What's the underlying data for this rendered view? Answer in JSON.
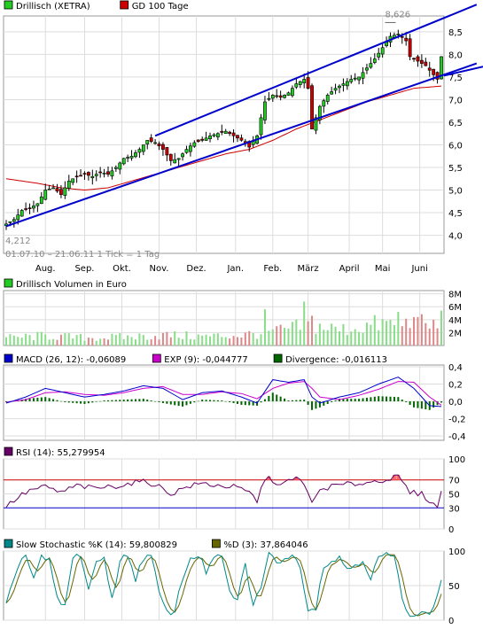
{
  "chart_data": [
    {
      "type": "candlestick",
      "panel": "price",
      "legend": [
        {
          "label": "Drillisch (XETRA)",
          "color": "#22cc22"
        },
        {
          "label": "GD 100 Tage",
          "color": "#cc0000"
        }
      ],
      "date_range_text": "01.07.10 – 21.06.11   1 Tick = 1 Tag",
      "max_label": "8,626",
      "min_label": "4,212",
      "y_ticks": [
        {
          "v": 4.0,
          "t": "4,0"
        },
        {
          "v": 4.5,
          "t": "4,5"
        },
        {
          "v": 5.0,
          "t": "5,0"
        },
        {
          "v": 5.5,
          "t": "5,5"
        },
        {
          "v": 6.0,
          "t": "6,0"
        },
        {
          "v": 6.5,
          "t": "6,5"
        },
        {
          "v": 7.0,
          "t": "7,0"
        },
        {
          "v": 7.5,
          "t": "7,5"
        },
        {
          "v": 8.0,
          "t": "8,0"
        },
        {
          "v": 8.5,
          "t": "8,5"
        }
      ],
      "ylim": [
        3.6,
        8.85
      ],
      "price_points": [
        [
          0,
          4.25
        ],
        [
          2,
          4.35
        ],
        [
          4,
          4.55
        ],
        [
          6,
          4.6
        ],
        [
          8,
          4.7
        ],
        [
          10,
          5.0
        ],
        [
          12,
          5.05
        ],
        [
          14,
          4.9
        ],
        [
          16,
          5.2
        ],
        [
          18,
          5.3
        ],
        [
          20,
          5.35
        ],
        [
          22,
          5.3
        ],
        [
          24,
          5.4
        ],
        [
          26,
          5.35
        ],
        [
          28,
          5.5
        ],
        [
          30,
          5.7
        ],
        [
          32,
          5.75
        ],
        [
          34,
          5.9
        ],
        [
          36,
          6.1
        ],
        [
          38,
          6.05
        ],
        [
          40,
          5.9
        ],
        [
          42,
          5.65
        ],
        [
          44,
          5.7
        ],
        [
          46,
          5.9
        ],
        [
          48,
          6.05
        ],
        [
          50,
          6.1
        ],
        [
          52,
          6.2
        ],
        [
          54,
          6.25
        ],
        [
          56,
          6.3
        ],
        [
          58,
          6.2
        ],
        [
          60,
          6.1
        ],
        [
          62,
          5.95
        ],
        [
          64,
          6.2
        ],
        [
          65,
          6.6
        ],
        [
          66,
          6.95
        ],
        [
          68,
          7.1
        ],
        [
          70,
          7.05
        ],
        [
          72,
          7.15
        ],
        [
          74,
          7.35
        ],
        [
          76,
          7.45
        ],
        [
          77,
          7.25
        ],
        [
          78,
          6.35
        ],
        [
          80,
          6.85
        ],
        [
          82,
          7.1
        ],
        [
          84,
          7.25
        ],
        [
          86,
          7.35
        ],
        [
          88,
          7.45
        ],
        [
          90,
          7.5
        ],
        [
          92,
          7.7
        ],
        [
          94,
          7.9
        ],
        [
          96,
          8.15
        ],
        [
          98,
          8.4
        ],
        [
          100,
          8.45
        ],
        [
          102,
          8.3
        ],
        [
          103,
          7.95
        ],
        [
          105,
          7.85
        ],
        [
          107,
          7.75
        ],
        [
          109,
          7.55
        ],
        [
          110,
          7.45
        ],
        [
          111,
          7.95
        ]
      ],
      "gd100_points": [
        [
          0,
          5.25
        ],
        [
          8,
          5.15
        ],
        [
          14,
          5.05
        ],
        [
          20,
          5.0
        ],
        [
          26,
          5.05
        ],
        [
          32,
          5.2
        ],
        [
          38,
          5.35
        ],
        [
          44,
          5.5
        ],
        [
          50,
          5.65
        ],
        [
          56,
          5.8
        ],
        [
          62,
          5.9
        ],
        [
          68,
          6.1
        ],
        [
          74,
          6.35
        ],
        [
          80,
          6.55
        ],
        [
          86,
          6.75
        ],
        [
          92,
          6.95
        ],
        [
          98,
          7.1
        ],
        [
          104,
          7.25
        ],
        [
          111,
          7.3
        ]
      ],
      "trendlines": [
        {
          "points": [
            [
              0,
              4.2
            ],
            [
              120,
              7.8
            ]
          ]
        },
        {
          "points": [
            [
              38,
              6.2
            ],
            [
              120,
              9.1
            ]
          ]
        }
      ],
      "x_labels": [
        {
          "i": 10,
          "t": "Aug."
        },
        {
          "i": 20,
          "t": "Sep."
        },
        {
          "i": 29.5,
          "t": "Okt."
        },
        {
          "i": 39,
          "t": "Nov."
        },
        {
          "i": 48.5,
          "t": "Dez."
        },
        {
          "i": 58.5,
          "t": "Jan."
        },
        {
          "i": 68,
          "t": "Feb."
        },
        {
          "i": 77,
          "t": "März"
        },
        {
          "i": 87.5,
          "t": "April"
        },
        {
          "i": 96,
          "t": "Mai"
        },
        {
          "i": 105.5,
          "t": "Juni"
        }
      ],
      "n_points": 112
    },
    {
      "type": "bar",
      "panel": "volume",
      "legend": [
        {
          "label": "Drillisch Volumen in Euro",
          "color": "#22cc22"
        }
      ],
      "y_ticks": [
        {
          "v": 2,
          "t": "2M"
        },
        {
          "v": 4,
          "t": "4M"
        },
        {
          "v": 6,
          "t": "6M"
        },
        {
          "v": 8,
          "t": "8M"
        }
      ],
      "ylim": [
        0,
        8.5
      ],
      "volume_profile": [
        [
          0,
          1.2
        ],
        [
          10,
          1.5
        ],
        [
          20,
          1.2
        ],
        [
          30,
          1.3
        ],
        [
          40,
          1.6
        ],
        [
          50,
          1.4
        ],
        [
          60,
          1.6
        ],
        [
          70,
          2.3
        ],
        [
          78,
          3.2
        ],
        [
          85,
          2.4
        ],
        [
          95,
          3.3
        ],
        [
          104,
          3.4
        ],
        [
          111,
          3.0
        ]
      ],
      "volume_spikes": [
        [
          66,
          5.6
        ],
        [
          76,
          6.8
        ],
        [
          78,
          4.6
        ],
        [
          100,
          5.2
        ],
        [
          104,
          4.4
        ],
        [
          111,
          5.4
        ]
      ]
    },
    {
      "type": "line",
      "panel": "macd",
      "legend": [
        {
          "label": "MACD (26, 12): -0,06089",
          "color": "#0000cc"
        },
        {
          "label": "EXP (9): -0,044777",
          "color": "#cc00cc"
        },
        {
          "label": "Divergence: -0,016113",
          "color": "#006600"
        }
      ],
      "y_ticks": [
        {
          "v": 0.4,
          "t": "0,4"
        },
        {
          "v": 0.2,
          "t": "0,2"
        },
        {
          "v": 0.0,
          "t": "0,0"
        },
        {
          "v": -0.2,
          "t": "-0,2"
        },
        {
          "v": -0.4,
          "t": "-0,4"
        }
      ],
      "ylim": [
        -0.45,
        0.42
      ],
      "macd_points": [
        [
          0,
          -0.02
        ],
        [
          5,
          0.05
        ],
        [
          10,
          0.15
        ],
        [
          15,
          0.1
        ],
        [
          20,
          0.05
        ],
        [
          25,
          0.08
        ],
        [
          30,
          0.12
        ],
        [
          35,
          0.18
        ],
        [
          40,
          0.15
        ],
        [
          45,
          0.02
        ],
        [
          50,
          0.1
        ],
        [
          55,
          0.12
        ],
        [
          60,
          0.05
        ],
        [
          64,
          -0.02
        ],
        [
          68,
          0.25
        ],
        [
          72,
          0.22
        ],
        [
          76,
          0.25
        ],
        [
          78,
          0.05
        ],
        [
          80,
          -0.02
        ],
        [
          85,
          0.05
        ],
        [
          90,
          0.1
        ],
        [
          95,
          0.2
        ],
        [
          100,
          0.28
        ],
        [
          104,
          0.15
        ],
        [
          108,
          -0.05
        ],
        [
          111,
          -0.06
        ]
      ],
      "exp_points": [
        [
          0,
          -0.01
        ],
        [
          5,
          0.02
        ],
        [
          10,
          0.1
        ],
        [
          15,
          0.11
        ],
        [
          20,
          0.08
        ],
        [
          25,
          0.07
        ],
        [
          30,
          0.1
        ],
        [
          35,
          0.15
        ],
        [
          40,
          0.17
        ],
        [
          45,
          0.08
        ],
        [
          50,
          0.08
        ],
        [
          55,
          0.11
        ],
        [
          60,
          0.09
        ],
        [
          64,
          0.03
        ],
        [
          68,
          0.15
        ],
        [
          72,
          0.21
        ],
        [
          76,
          0.23
        ],
        [
          78,
          0.15
        ],
        [
          80,
          0.05
        ],
        [
          85,
          0.02
        ],
        [
          90,
          0.07
        ],
        [
          95,
          0.14
        ],
        [
          100,
          0.23
        ],
        [
          104,
          0.22
        ],
        [
          108,
          0.05
        ],
        [
          111,
          -0.045
        ]
      ]
    },
    {
      "type": "line",
      "panel": "rsi",
      "legend": [
        {
          "label": "RSI (14): 55,279954",
          "color": "#660066"
        }
      ],
      "y_ticks": [
        {
          "v": 100,
          "t": "100"
        },
        {
          "v": 70,
          "t": "70"
        },
        {
          "v": 50,
          "t": "50"
        },
        {
          "v": 30,
          "t": "30"
        },
        {
          "v": 0,
          "t": "0"
        }
      ],
      "ylim": [
        0,
        100
      ],
      "overbought": 70,
      "oversold": 30,
      "rsi_points": [
        [
          0,
          32
        ],
        [
          3,
          45
        ],
        [
          6,
          55
        ],
        [
          10,
          60
        ],
        [
          14,
          52
        ],
        [
          18,
          62
        ],
        [
          22,
          58
        ],
        [
          26,
          60
        ],
        [
          30,
          63
        ],
        [
          34,
          68
        ],
        [
          38,
          64
        ],
        [
          42,
          50
        ],
        [
          46,
          60
        ],
        [
          50,
          65
        ],
        [
          54,
          62
        ],
        [
          58,
          60
        ],
        [
          62,
          52
        ],
        [
          64,
          40
        ],
        [
          66,
          72
        ],
        [
          68,
          70
        ],
        [
          70,
          62
        ],
        [
          72,
          68
        ],
        [
          74,
          72
        ],
        [
          76,
          66
        ],
        [
          78,
          35
        ],
        [
          80,
          56
        ],
        [
          84,
          62
        ],
        [
          88,
          64
        ],
        [
          92,
          66
        ],
        [
          96,
          70
        ],
        [
          100,
          74
        ],
        [
          103,
          52
        ],
        [
          106,
          50
        ],
        [
          109,
          35
        ],
        [
          110,
          32
        ],
        [
          111,
          55
        ]
      ]
    },
    {
      "type": "line",
      "panel": "stochastic",
      "legend": [
        {
          "label": "Slow Stochastic %K (14): 59,800829",
          "color": "#008888"
        },
        {
          "label": "%D (3): 37,864046",
          "color": "#666600"
        }
      ],
      "y_ticks": [
        {
          "v": 100,
          "t": "100"
        },
        {
          "v": 50,
          "t": "50"
        },
        {
          "v": 0,
          "t": "0"
        }
      ],
      "ylim": [
        0,
        100
      ],
      "stoch_points": [
        [
          0,
          20
        ],
        [
          3,
          80
        ],
        [
          5,
          95
        ],
        [
          7,
          60
        ],
        [
          9,
          90
        ],
        [
          11,
          85
        ],
        [
          13,
          30
        ],
        [
          15,
          20
        ],
        [
          17,
          90
        ],
        [
          19,
          95
        ],
        [
          21,
          45
        ],
        [
          23,
          80
        ],
        [
          25,
          92
        ],
        [
          27,
          30
        ],
        [
          29,
          85
        ],
        [
          31,
          95
        ],
        [
          33,
          60
        ],
        [
          35,
          90
        ],
        [
          37,
          92
        ],
        [
          39,
          40
        ],
        [
          41,
          10
        ],
        [
          43,
          15
        ],
        [
          45,
          60
        ],
        [
          47,
          90
        ],
        [
          49,
          95
        ],
        [
          51,
          70
        ],
        [
          53,
          90
        ],
        [
          55,
          90
        ],
        [
          57,
          40
        ],
        [
          59,
          30
        ],
        [
          61,
          80
        ],
        [
          63,
          20
        ],
        [
          65,
          50
        ],
        [
          67,
          95
        ],
        [
          69,
          85
        ],
        [
          71,
          90
        ],
        [
          73,
          92
        ],
        [
          75,
          80
        ],
        [
          77,
          15
        ],
        [
          79,
          20
        ],
        [
          81,
          80
        ],
        [
          83,
          85
        ],
        [
          85,
          90
        ],
        [
          87,
          75
        ],
        [
          89,
          80
        ],
        [
          91,
          88
        ],
        [
          93,
          60
        ],
        [
          95,
          90
        ],
        [
          97,
          95
        ],
        [
          99,
          92
        ],
        [
          101,
          30
        ],
        [
          103,
          10
        ],
        [
          105,
          8
        ],
        [
          107,
          10
        ],
        [
          109,
          15
        ],
        [
          111,
          60
        ]
      ]
    }
  ]
}
